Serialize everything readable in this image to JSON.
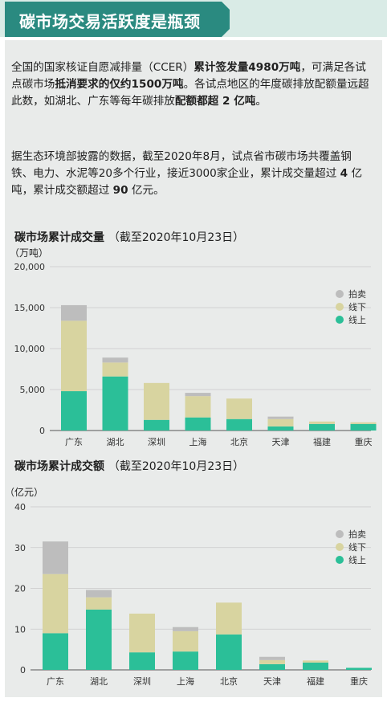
{
  "header": {
    "title": "碳市场交易活跃度是瓶颈"
  },
  "para1": {
    "t1": "全国的国家核证自愿减排量（CCER）",
    "b1": "累计签发量4980万吨",
    "t2": "，可满足各试点碳市场",
    "b2": "抵消要求的仅约1500万吨",
    "t3": "。各试点地区的年度碳排放配额量远超此数，如湖北、广东等每年碳排放",
    "b3": "配额都超 2 亿吨",
    "t4": "。"
  },
  "para2": {
    "t1": "据生态环境部披露的数据，截至2020年8月，试点省市碳市场共覆盖钢铁、电力、水泥等20多个行业，接近3000家企业，累计成交量超过 ",
    "b1": "4",
    "t2": " 亿吨，累计成交额超过 ",
    "b2": "90",
    "t3": " 亿元。"
  },
  "chart_data": [
    {
      "type": "bar",
      "stacked": true,
      "title": "碳市场累计成交量",
      "subtitle": "（截至2020年10月23日）",
      "ylabel": "（万吨）",
      "ylim": [
        0,
        20000
      ],
      "yticks": [
        "0",
        "5,000",
        "10,000",
        "15,000",
        "20,000"
      ],
      "categories": [
        "广东",
        "湖北",
        "深圳",
        "上海",
        "北京",
        "天津",
        "福建",
        "重庆"
      ],
      "series": [
        {
          "name": "线上",
          "color": "#2bbf98",
          "values": [
            4800,
            6600,
            1300,
            1600,
            1400,
            500,
            800,
            800
          ]
        },
        {
          "name": "线下",
          "color": "#d8d4a0",
          "values": [
            8600,
            1700,
            4500,
            2600,
            2500,
            900,
            300,
            200
          ]
        },
        {
          "name": "拍卖",
          "color": "#bdbdbd",
          "values": [
            1900,
            600,
            0,
            400,
            0,
            300,
            0,
            0
          ]
        }
      ],
      "legend_position": "top-right"
    },
    {
      "type": "bar",
      "stacked": true,
      "title": "碳市场累计成交额",
      "subtitle": "（截至2020年10月23日）",
      "ylabel": "（亿元）",
      "ylim": [
        0,
        40
      ],
      "yticks": [
        "0",
        "10",
        "20",
        "30",
        "40"
      ],
      "categories": [
        "广东",
        "湖北",
        "深圳",
        "上海",
        "北京",
        "天津",
        "福建",
        "重庆"
      ],
      "series": [
        {
          "name": "线上",
          "color": "#2bbf98",
          "values": [
            9,
            14.8,
            4.3,
            4.5,
            8.7,
            1.4,
            1.8,
            0.5
          ]
        },
        {
          "name": "线下",
          "color": "#d8d4a0",
          "values": [
            14.5,
            3,
            9.5,
            5,
            7.8,
            1,
            0.5,
            0
          ]
        },
        {
          "name": "拍卖",
          "color": "#bdbdbd",
          "values": [
            8,
            1.8,
            0,
            1,
            0,
            0.8,
            0,
            0
          ]
        }
      ],
      "legend_position": "top-right"
    }
  ]
}
